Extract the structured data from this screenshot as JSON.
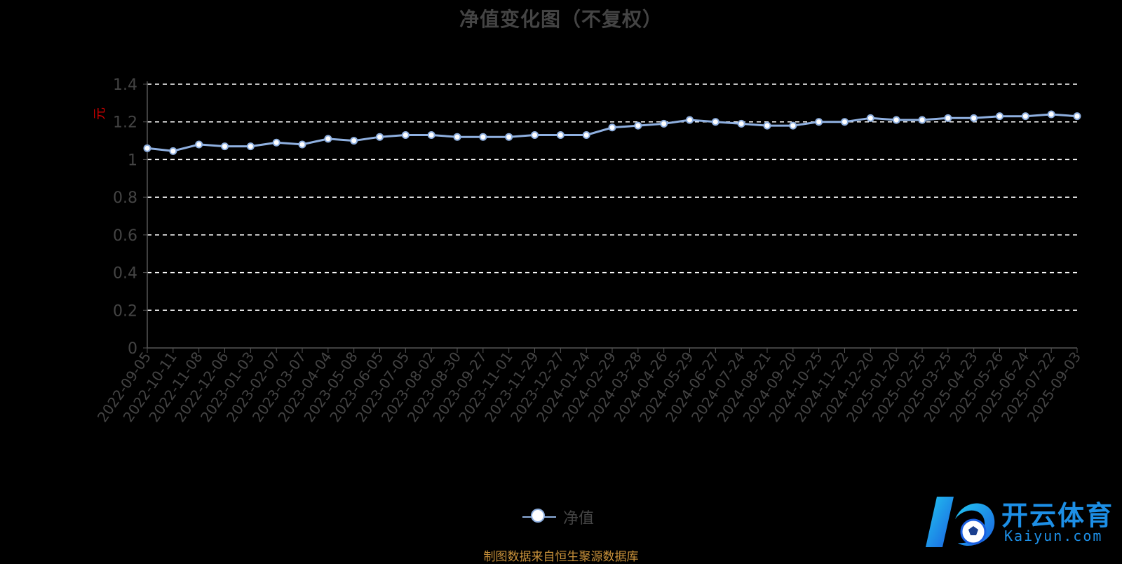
{
  "title": "净值变化图（不复权）",
  "legend": {
    "label": "净值"
  },
  "source_note": "制图数据来自恒生聚源数据库",
  "logo": {
    "name": "开云体育",
    "url_text": "Kaiyun.com"
  },
  "colors": {
    "line": "#8fb0e0",
    "grid": "#ffffff",
    "axis_text": "#444444",
    "unit": "#cc0000",
    "source": "#c8913a",
    "logo": "#1d8fe6"
  },
  "chart_data": {
    "type": "line",
    "title": "净值变化图（不复权）",
    "ylabel": "元",
    "ylim": [
      0,
      1.4
    ],
    "yticks": [
      "0",
      "0.2",
      "0.4",
      "0.6",
      "0.8",
      "1",
      "1.2",
      "1.4"
    ],
    "grid": true,
    "legend_position": "bottom",
    "x": [
      "2022-09-05",
      "2022-10-11",
      "2022-11-08",
      "2022-12-06",
      "2023-01-03",
      "2023-02-07",
      "2023-03-07",
      "2023-04-04",
      "2023-05-08",
      "2023-06-05",
      "2023-07-05",
      "2023-08-02",
      "2023-08-30",
      "2023-09-27",
      "2023-11-01",
      "2023-11-29",
      "2023-12-27",
      "2024-01-24",
      "2024-02-29",
      "2024-03-28",
      "2024-04-26",
      "2024-05-29",
      "2024-06-27",
      "2024-07-24",
      "2024-08-21",
      "2024-09-20",
      "2024-10-25",
      "2024-11-22",
      "2024-12-20",
      "2025-01-20",
      "2025-02-25",
      "2025-03-25",
      "2025-04-23",
      "2025-05-26",
      "2025-06-24",
      "2025-07-22",
      "2025-09-03"
    ],
    "series": [
      {
        "name": "净值",
        "values": [
          1.06,
          1.045,
          1.08,
          1.07,
          1.07,
          1.09,
          1.08,
          1.11,
          1.1,
          1.12,
          1.13,
          1.13,
          1.12,
          1.12,
          1.12,
          1.13,
          1.13,
          1.13,
          1.17,
          1.18,
          1.19,
          1.21,
          1.2,
          1.19,
          1.18,
          1.18,
          1.2,
          1.2,
          1.22,
          1.21,
          1.21,
          1.22,
          1.22,
          1.23,
          1.23,
          1.24,
          1.23
        ]
      }
    ]
  }
}
